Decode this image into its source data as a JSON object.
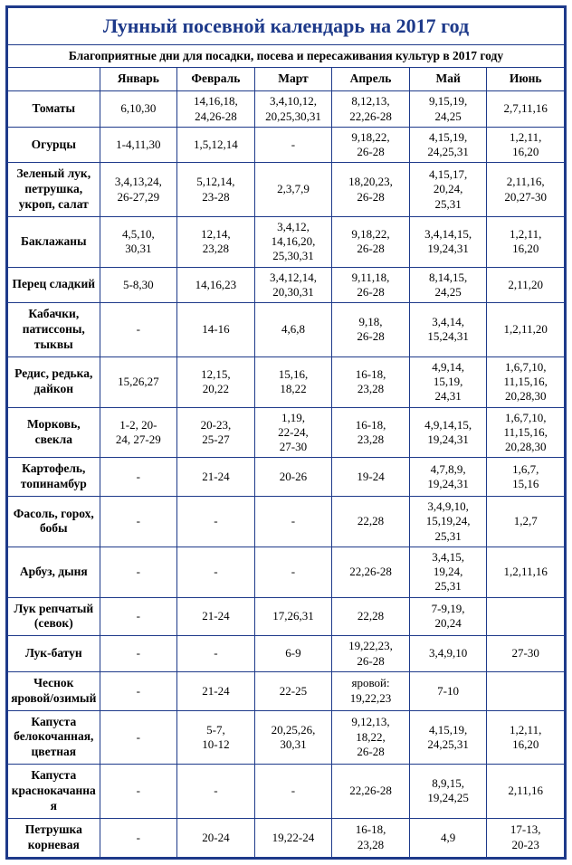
{
  "title": "Лунный посевной календарь на 2017 год",
  "subtitle": "Благоприятные дни для посадки, посева и пересаживания культур в 2017 году",
  "months": [
    "Январь",
    "Февраль",
    "Март",
    "Апрель",
    "Май",
    "Июнь"
  ],
  "rows": [
    {
      "crop": "Томаты",
      "cells": [
        "6,10,30",
        "14,16,18,\n24,26-28",
        "3,4,10,12,\n20,25,30,31",
        "8,12,13,\n22,26-28",
        "9,15,19,\n24,25",
        "2,7,11,16"
      ]
    },
    {
      "crop": "Огурцы",
      "cells": [
        "1-4,11,30",
        "1,5,12,14",
        "-",
        "9,18,22,\n26-28",
        "4,15,19,\n24,25,31",
        "1,2,11,\n16,20"
      ]
    },
    {
      "crop": "Зеленый лук,\nпетрушка,\nукроп, салат",
      "cells": [
        "3,4,13,24,\n26-27,29",
        "5,12,14,\n23-28",
        "2,3,7,9",
        "18,20,23,\n26-28",
        "4,15,17,\n20,24,\n25,31",
        "2,11,16,\n20,27-30"
      ]
    },
    {
      "crop": "Баклажаны",
      "cells": [
        "4,5,10,\n30,31",
        "12,14,\n23,28",
        "3,4,12,\n14,16,20,\n25,30,31",
        "9,18,22,\n26-28",
        "3,4,14,15,\n19,24,31",
        "1,2,11,\n16,20"
      ]
    },
    {
      "crop": "Перец сладкий",
      "cells": [
        "5-8,30",
        "14,16,23",
        "3,4,12,14,\n20,30,31",
        "9,11,18,\n26-28",
        "8,14,15,\n24,25",
        "2,11,20"
      ]
    },
    {
      "crop": "Кабачки,\nпатиссоны,\nтыквы",
      "cells": [
        "-",
        "14-16",
        "4,6,8",
        "9,18,\n26-28",
        "3,4,14,\n15,24,31",
        "1,2,11,20"
      ]
    },
    {
      "crop": "Редис, редька,\nдайкон",
      "cells": [
        "15,26,27",
        "12,15,\n20,22",
        "15,16,\n18,22",
        "16-18,\n23,28",
        "4,9,14,\n15,19,\n24,31",
        "1,6,7,10,\n11,15,16,\n20,28,30"
      ]
    },
    {
      "crop": "Морковь,\nсвекла",
      "cells": [
        "1-2, 20-\n24, 27-29",
        "20-23,\n25-27",
        "1,19,\n22-24,\n27-30",
        "16-18,\n23,28",
        "4,9,14,15,\n19,24,31",
        "1,6,7,10,\n11,15,16,\n20,28,30"
      ]
    },
    {
      "crop": "Картофель,\nтопинамбур",
      "cells": [
        "-",
        "21-24",
        "20-26",
        "19-24",
        "4,7,8,9,\n19,24,31",
        "1,6,7,\n15,16"
      ]
    },
    {
      "crop": "Фасоль, горох,\nбобы",
      "cells": [
        "-",
        "-",
        "-",
        "22,28",
        "3,4,9,10,\n15,19,24,\n25,31",
        "1,2,7"
      ]
    },
    {
      "crop": "Арбуз, дыня",
      "cells": [
        "-",
        "-",
        "-",
        "22,26-28",
        "3,4,15,\n19,24,\n25,31",
        "1,2,11,16"
      ]
    },
    {
      "crop": "Лук репчатый\n(севок)",
      "cells": [
        "-",
        "21-24",
        "17,26,31",
        "22,28",
        "7-9,19,\n20,24",
        ""
      ]
    },
    {
      "crop": "Лук-батун",
      "cells": [
        "-",
        "-",
        "6-9",
        "19,22,23,\n26-28",
        "3,4,9,10",
        "27-30"
      ]
    },
    {
      "crop": "Чеснок\nяровой/озимый",
      "cells": [
        "-",
        "21-24",
        "22-25",
        "яровой:\n19,22,23",
        "7-10",
        ""
      ]
    },
    {
      "crop": "Капуста\nбелокочанная,\nцветная",
      "cells": [
        "-",
        "5-7,\n10-12",
        "20,25,26,\n30,31",
        "9,12,13,\n18,22,\n26-28",
        "4,15,19,\n24,25,31",
        "1,2,11,\n16,20"
      ]
    },
    {
      "crop": "Капуста\nкраснокачанная",
      "cells": [
        "-",
        "-",
        "-",
        "22,26-28",
        "8,9,15,\n19,24,25",
        "2,11,16"
      ]
    },
    {
      "crop": "Петрушка\nкорневая",
      "cells": [
        "-",
        "20-24",
        "19,22-24",
        "16-18,\n23,28",
        "4,9",
        "17-13,\n20-23"
      ]
    }
  ],
  "style": {
    "border_color": "#1e3a8a",
    "title_color": "#1e3a8a",
    "text_color": "#000000",
    "background": "#ffffff",
    "title_fontsize": 22,
    "header_fontsize": 13.5,
    "cell_fontsize": 13
  }
}
